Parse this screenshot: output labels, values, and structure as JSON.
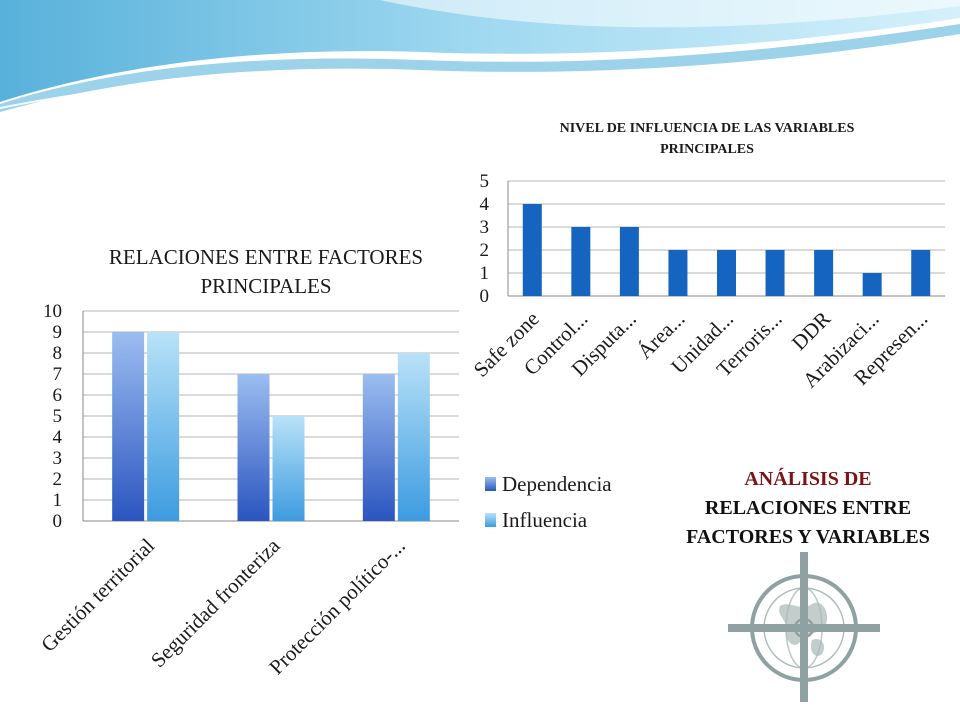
{
  "slide_title": [
    "ANÁLISIS DE",
    "RELACIONES ENTRE",
    "FACTORES Y VARIABLES"
  ],
  "colors": {
    "bar_dependencia": "#2f5fc4",
    "bar_influencia": "#4aa8e3",
    "bar_single": "#1565c0",
    "wave_light": "#a9dcf0",
    "wave_dark": "#5ab4dc",
    "emblem": "#8fa1a0"
  },
  "icons": {
    "emblem": "crosshair-globe-icon"
  },
  "chart_data": [
    {
      "type": "bar",
      "title": [
        "RELACIONES ENTRE FACTORES",
        "PRINCIPALES"
      ],
      "categories": [
        "Gestión territorial",
        "Seguridad fronteriza",
        "Protección político-..."
      ],
      "series": [
        {
          "name": "Dependencia",
          "values": [
            9,
            7,
            7
          ]
        },
        {
          "name": "Influencia",
          "values": [
            9,
            5,
            8
          ]
        }
      ],
      "y_ticks": [
        "0",
        "1",
        "2",
        "3",
        "4",
        "5",
        "6",
        "7",
        "8",
        "9",
        "10"
      ],
      "ylim": [
        0,
        10
      ],
      "grid": true,
      "legend": "right"
    },
    {
      "type": "bar",
      "title": [
        "NIVEL DE INFLUENCIA DE LAS VARIABLES",
        "PRINCIPALES"
      ],
      "categories": [
        "Safe zone",
        "Control...",
        "Disputa...",
        "Área...",
        "Unidad...",
        "Terroris...",
        "DDR",
        "Arabizaci...",
        "Represen..."
      ],
      "values": [
        4,
        3,
        3,
        2,
        2,
        2,
        2,
        1,
        2
      ],
      "y_ticks": [
        "0",
        "1",
        "2",
        "3",
        "4",
        "5"
      ],
      "ylim": [
        0,
        5
      ],
      "grid": true,
      "legend": "none"
    }
  ]
}
